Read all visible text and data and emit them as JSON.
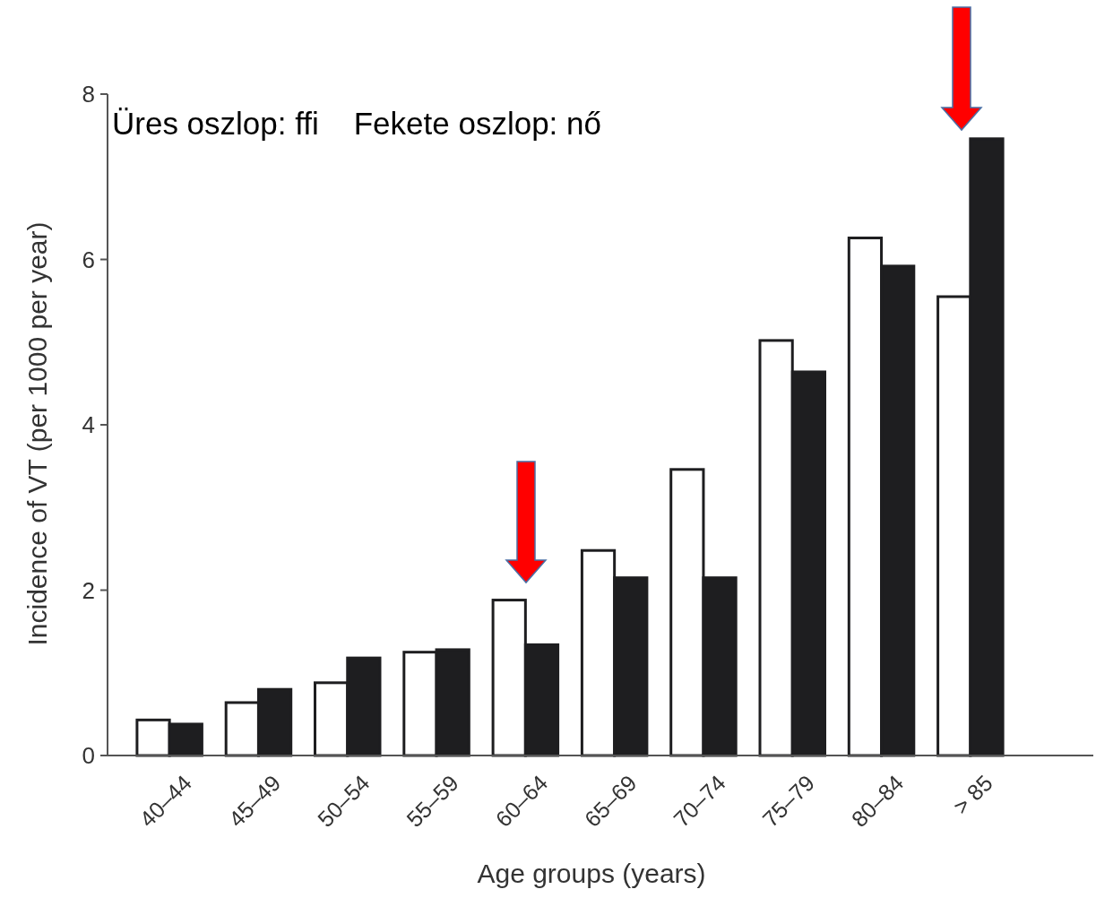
{
  "chart_data": {
    "type": "bar",
    "xlabel": "Age groups (years)",
    "ylabel": "Incidence of VT (per 1000 per year)",
    "categories": [
      "40–44",
      "45–49",
      "50–54",
      "55–59",
      "60–64",
      "65–69",
      "70–74",
      "75–79",
      "80–84",
      "> 85"
    ],
    "series": [
      {
        "color": "#ffffff",
        "values": [
          0.43,
          0.64,
          0.88,
          1.25,
          1.88,
          2.48,
          3.46,
          5.02,
          6.26,
          5.55
        ]
      },
      {
        "color": "#1e1e20",
        "values": [
          0.38,
          0.8,
          1.18,
          1.28,
          1.34,
          2.15,
          2.15,
          4.64,
          5.92,
          7.46
        ]
      }
    ],
    "ylim": [
      0,
      8
    ],
    "yticks": [
      0,
      2,
      4,
      6,
      8
    ],
    "annotations": [
      "Üres oszlop: ffi    Fekete oszlop: nő"
    ]
  }
}
